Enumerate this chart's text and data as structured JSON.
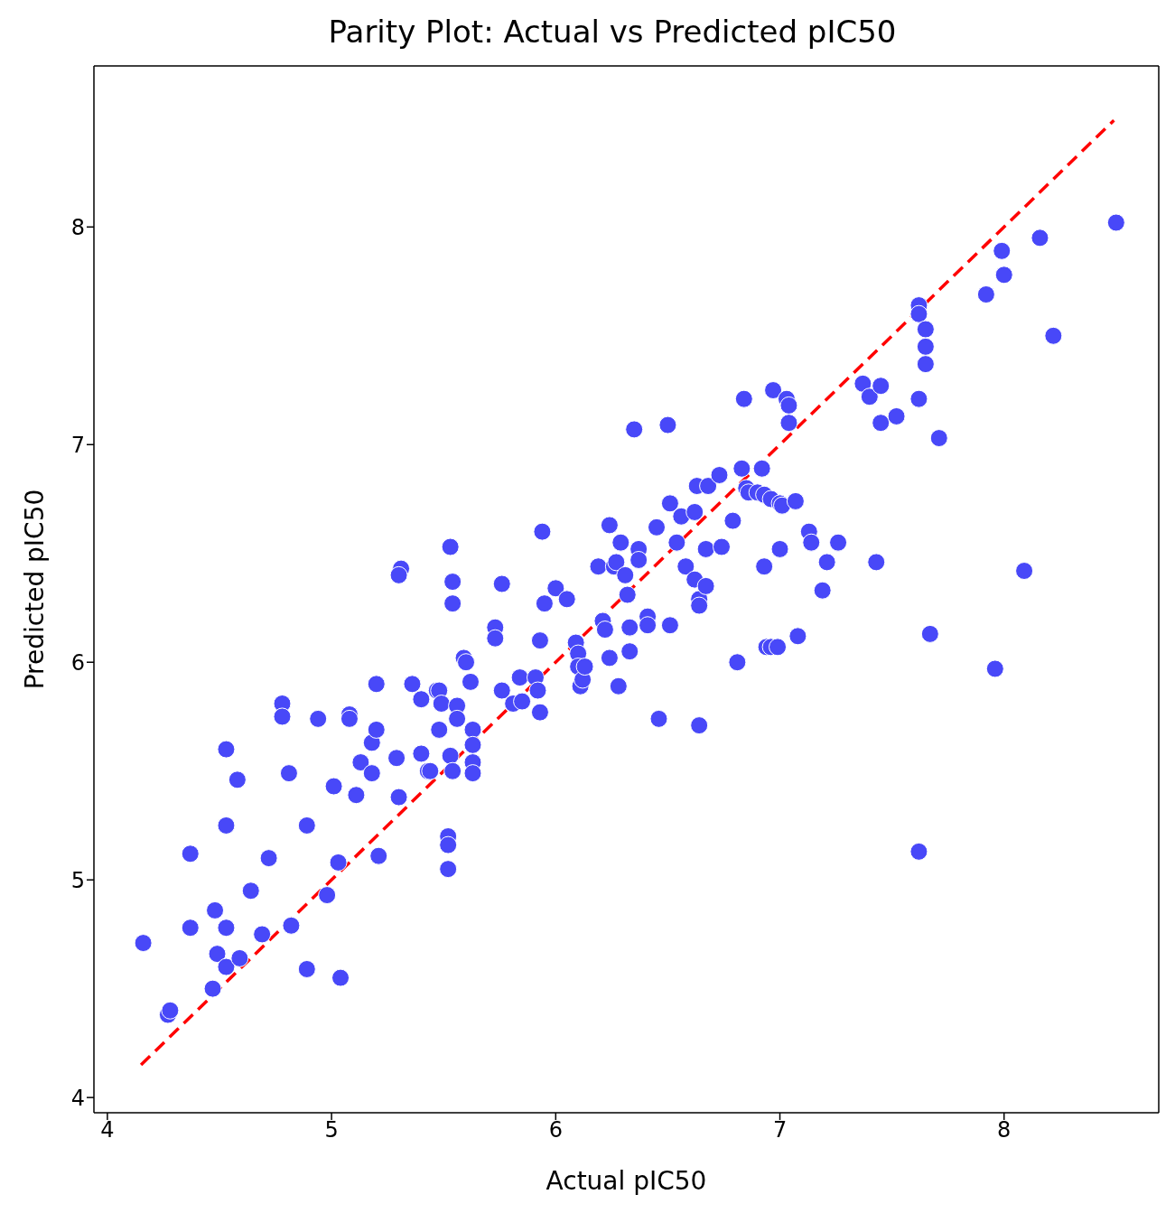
{
  "chart_data": {
    "type": "scatter",
    "title": "Parity Plot: Actual vs Predicted pIC50",
    "xlabel": "Actual pIC50",
    "ylabel": "Predicted pIC50",
    "xlim": [
      3.94,
      8.69
    ],
    "ylim": [
      3.93,
      8.74
    ],
    "xticks": [
      4,
      5,
      6,
      7,
      8
    ],
    "yticks": [
      4,
      5,
      6,
      7,
      8
    ],
    "series": [
      {
        "color": "#4848f8",
        "marker": "circle",
        "x": [
          4.16,
          4.27,
          4.28,
          4.37,
          4.37,
          4.48,
          4.49,
          4.47,
          4.53,
          4.53,
          4.53,
          4.53,
          4.58,
          4.59,
          4.64,
          4.69,
          4.72,
          4.78,
          4.78,
          4.81,
          4.82,
          4.89,
          4.89,
          4.94,
          4.98,
          5.01,
          5.03,
          5.04,
          5.08,
          5.08,
          5.11,
          5.13,
          5.18,
          5.18,
          5.2,
          5.2,
          5.21,
          5.29,
          5.31,
          5.3,
          5.3,
          5.36,
          5.4,
          5.4,
          5.43,
          5.44,
          5.47,
          5.48,
          5.48,
          5.49,
          5.52,
          5.52,
          5.52,
          5.53,
          5.54,
          5.53,
          5.54,
          5.54,
          5.56,
          5.56,
          5.59,
          5.6,
          5.62,
          5.63,
          5.63,
          5.63,
          5.63,
          5.73,
          5.73,
          5.76,
          5.76,
          5.81,
          5.84,
          5.85,
          5.91,
          5.92,
          5.93,
          5.93,
          5.94,
          5.95,
          6.0,
          6.05,
          6.09,
          6.1,
          6.1,
          6.11,
          6.12,
          6.13,
          6.19,
          6.21,
          6.22,
          6.24,
          6.24,
          6.26,
          6.27,
          6.28,
          6.29,
          6.31,
          6.32,
          6.33,
          6.33,
          6.35,
          6.37,
          6.37,
          6.41,
          6.41,
          6.45,
          6.46,
          6.5,
          6.51,
          6.51,
          6.54,
          6.56,
          6.58,
          6.62,
          6.62,
          6.63,
          6.64,
          6.64,
          6.64,
          6.67,
          6.67,
          6.68,
          6.73,
          6.74,
          6.79,
          6.81,
          6.83,
          6.84,
          6.85,
          6.86,
          6.9,
          6.92,
          6.93,
          6.93,
          6.94,
          6.96,
          6.96,
          6.97,
          6.99,
          7.0,
          7.01,
          7.0,
          7.03,
          7.04,
          7.04,
          7.07,
          7.08,
          7.13,
          7.14,
          7.19,
          7.21,
          7.26,
          7.37,
          7.4,
          7.43,
          7.45,
          7.45,
          7.52,
          7.62,
          7.62,
          7.62,
          7.62,
          7.65,
          7.65,
          7.65,
          7.67,
          7.71,
          7.92,
          7.96,
          7.99,
          8.0,
          8.09,
          8.16,
          8.22,
          8.5
        ],
        "values": [
          4.71,
          4.38,
          4.4,
          5.12,
          4.78,
          4.86,
          4.66,
          4.5,
          5.6,
          5.25,
          4.78,
          4.6,
          5.46,
          4.64,
          4.95,
          4.75,
          5.1,
          5.81,
          5.75,
          5.49,
          4.79,
          5.25,
          4.59,
          5.74,
          4.93,
          5.43,
          5.08,
          4.55,
          5.76,
          5.74,
          5.39,
          5.54,
          5.63,
          5.49,
          5.69,
          5.9,
          5.11,
          5.56,
          6.43,
          6.4,
          5.38,
          5.9,
          5.83,
          5.58,
          5.5,
          5.5,
          5.87,
          5.87,
          5.69,
          5.81,
          5.05,
          5.2,
          5.16,
          5.57,
          5.5,
          6.53,
          6.37,
          6.27,
          5.8,
          5.74,
          6.02,
          6.0,
          5.91,
          5.69,
          5.62,
          5.54,
          5.49,
          6.16,
          6.11,
          6.36,
          5.87,
          5.81,
          5.93,
          5.82,
          5.93,
          5.87,
          5.77,
          6.1,
          6.6,
          6.27,
          6.34,
          6.29,
          6.09,
          6.04,
          5.98,
          5.89,
          5.92,
          5.98,
          6.44,
          6.19,
          6.15,
          6.63,
          6.02,
          6.44,
          6.46,
          5.89,
          6.55,
          6.4,
          6.31,
          6.16,
          6.05,
          7.07,
          6.52,
          6.47,
          6.21,
          6.17,
          6.62,
          5.74,
          7.09,
          6.73,
          6.17,
          6.55,
          6.67,
          6.44,
          6.69,
          6.38,
          6.81,
          5.71,
          6.29,
          6.26,
          6.35,
          6.52,
          6.81,
          6.86,
          6.53,
          6.65,
          6.0,
          6.89,
          7.21,
          6.8,
          6.78,
          6.78,
          6.89,
          6.77,
          6.44,
          6.07,
          6.07,
          6.75,
          7.25,
          6.07,
          6.73,
          6.72,
          6.52,
          7.21,
          7.18,
          7.1,
          6.74,
          6.12,
          6.6,
          6.55,
          6.33,
          6.46,
          6.55,
          7.28,
          7.22,
          6.46,
          7.27,
          7.1,
          7.13,
          7.21,
          7.64,
          7.6,
          5.13,
          7.53,
          7.45,
          7.37,
          6.13,
          7.03,
          7.69,
          5.97,
          7.89,
          7.78,
          6.42,
          7.95,
          7.5,
          8.02
        ]
      },
      {
        "type": "line",
        "color": "#ff0000",
        "line_style": "dashed",
        "marker": "none",
        "x": [
          4.15,
          8.49
        ],
        "values": [
          4.15,
          8.49
        ]
      }
    ]
  }
}
